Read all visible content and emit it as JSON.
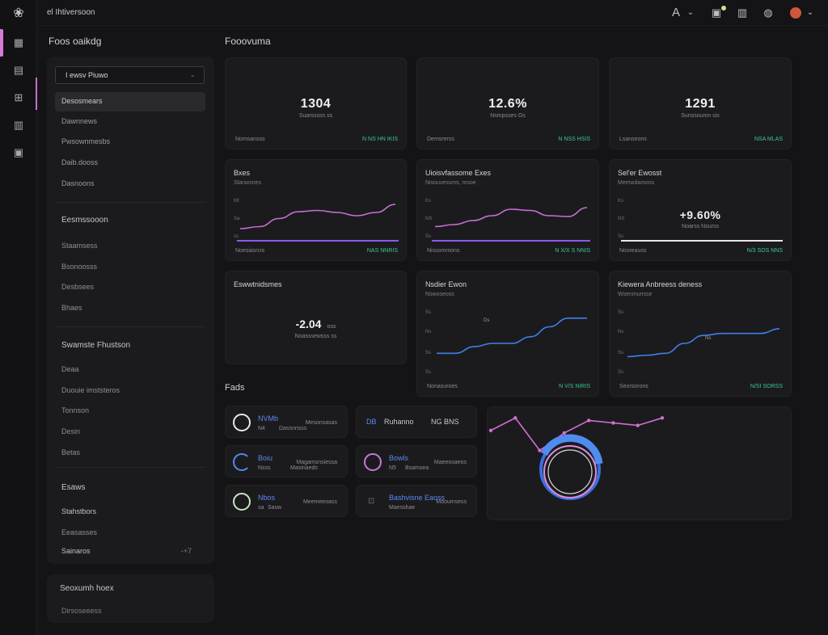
{
  "app": {
    "breadcrumb": "el Ihtiversoon"
  },
  "topbar": {
    "font_label": "A",
    "chevron": "⌄"
  },
  "sidebar": {
    "title": "Foos oaikdg",
    "select_value": "I ewsv Piuwo",
    "items": [
      "Desosmears",
      "Dawnnews",
      "Pwsownmesbs",
      "Daib.dooss",
      "Dasnoons"
    ],
    "group1": {
      "title": "Eesmssooon",
      "items": [
        "Staamsess",
        "Bsonoosss",
        "Desbsees",
        "Bhaes"
      ]
    },
    "group2": {
      "title": "Swamste Fhustson",
      "items": [
        "Deaa",
        "Duouie imststeros",
        "Tonnson",
        "Desin",
        "Betas"
      ]
    },
    "group3": {
      "title": "Esaws",
      "items": [
        "Stahstbors",
        "Eeasasses",
        "Sainaros"
      ],
      "badge": "-+7"
    },
    "footer": {
      "title": "Seoxumh hoex",
      "sub": "Dirsoseeess"
    }
  },
  "main": {
    "title": "Fooovuma",
    "stats": [
      {
        "value": "1304",
        "sub": "Suarsssss  ss",
        "foot_left": "Nomsansss",
        "foot_right": "N NS HN IKIS"
      },
      {
        "value": "12.6%",
        "sub": "Nsmpsses  Gs",
        "foot_left": "Demsrerss",
        "foot_right": "N NSS HSIS"
      },
      {
        "value": "1291",
        "sub": "Sunssoumn  sis",
        "foot_left": "Lsanseons",
        "foot_right": "NSA MLAS"
      }
    ],
    "charts_row1": [
      {
        "title": "Bxes",
        "sub": "Slanwsnes",
        "foot_left": "Noesiasrcis",
        "foot_right": "NAS NNRIS"
      },
      {
        "title": "Uioisvfassome Exes",
        "sub": "Nisouvessms, msoe",
        "foot_left": "Nissommons",
        "foot_right": "N X/X S NNIS"
      },
      {
        "title": "Sel'er Ewosst",
        "sub": "Memwdamoss",
        "value": "+9.60%",
        "value_sub": "Noarss Nsurss",
        "foot_left": "Nosreauss",
        "foot_right": "N/3 SOS NNS"
      }
    ],
    "charts_row2": [
      {
        "title": "Eswwtnidsmes",
        "value": "-2.04",
        "value_suffix": "oss",
        "value_sub": "Noasssewsss  ss",
        "foot_left": "",
        "foot_right": ""
      },
      {
        "title": "Nsdier Ewon",
        "sub": "Nswoseoss",
        "annotation": "Ds",
        "foot_left": "Nonasuroes",
        "foot_right": "N V/S NIRIS"
      },
      {
        "title": "Kiewera Anbreess deness",
        "sub": "Wsenmunsse",
        "annotation": "Ns",
        "foot_left": "Seorsorons",
        "foot_right": "N/SI SORSS"
      }
    ],
    "y_labels_a": [
      "Mt",
      "Sa",
      "ss"
    ],
    "y_labels_b": [
      "Ks",
      "NS",
      "Ss"
    ],
    "y_labels_c": [
      "Ss",
      "Ns",
      "Ss",
      "Ss"
    ]
  },
  "files": {
    "title": "Fads",
    "items": [
      {
        "name": "NVMb",
        "a": "N4",
        "b": "Dassnnsss",
        "c": "Mesonsasas",
        "ring": "#e7e7ea",
        "name_color": "#5a89f2"
      },
      {
        "name": "DB",
        "b": "Ruhanno",
        "c": "NG BNS",
        "ring": "",
        "name_color": "#5a89f2"
      },
      {
        "name": "Boiu",
        "a": "Nsss",
        "b": "Masinaeds",
        "c": "Magamsnsiessa",
        "ring": "#4f8cf0",
        "name_color": "#5a89f2"
      },
      {
        "name": "Bowls",
        "a": "N5",
        "b": "Bsamsea",
        "c": "Maeeosaeos",
        "ring": "#c878d6",
        "name_color": "#5a89f2"
      },
      {
        "name": "Nbos",
        "a": "sa",
        "b": "Sasw",
        "c": "Meemeeoass",
        "ring": "#c5e6c1",
        "name_color": "#5a89f2"
      },
      {
        "name": "Bashvisne Eaoss",
        "a": "Maesshae",
        "c": "Mooumsess",
        "ring": "",
        "name_color": "#5a89f2"
      }
    ]
  },
  "chart_data": [
    {
      "type": "line",
      "title": "Bxes",
      "series": [
        {
          "name": "",
          "values": [
            0.3,
            0.35,
            0.55,
            0.72,
            0.75,
            0.7,
            0.62,
            0.7,
            0.9
          ]
        }
      ]
    },
    {
      "type": "line",
      "title": "Uioisvfassome Exes",
      "series": [
        {
          "name": "",
          "values": [
            0.35,
            0.4,
            0.5,
            0.62,
            0.78,
            0.75,
            0.62,
            0.6,
            0.82
          ]
        }
      ]
    },
    {
      "type": "line",
      "title": "Nsdier Ewon",
      "series": [
        {
          "name": "",
          "values": [
            0.35,
            0.35,
            0.45,
            0.5,
            0.5,
            0.6,
            0.75,
            0.88,
            0.88
          ]
        }
      ]
    },
    {
      "type": "line",
      "title": "Kiewera Anbreess deness",
      "series": [
        {
          "name": "",
          "values": [
            0.3,
            0.32,
            0.35,
            0.5,
            0.62,
            0.65,
            0.65,
            0.65,
            0.72
          ]
        }
      ]
    },
    {
      "type": "line",
      "title": "",
      "series": [
        {
          "name": "",
          "values": [
            0.6,
            0.85,
            0.2,
            0.55,
            0.8,
            0.75,
            0.7,
            0.85
          ]
        }
      ]
    }
  ]
}
